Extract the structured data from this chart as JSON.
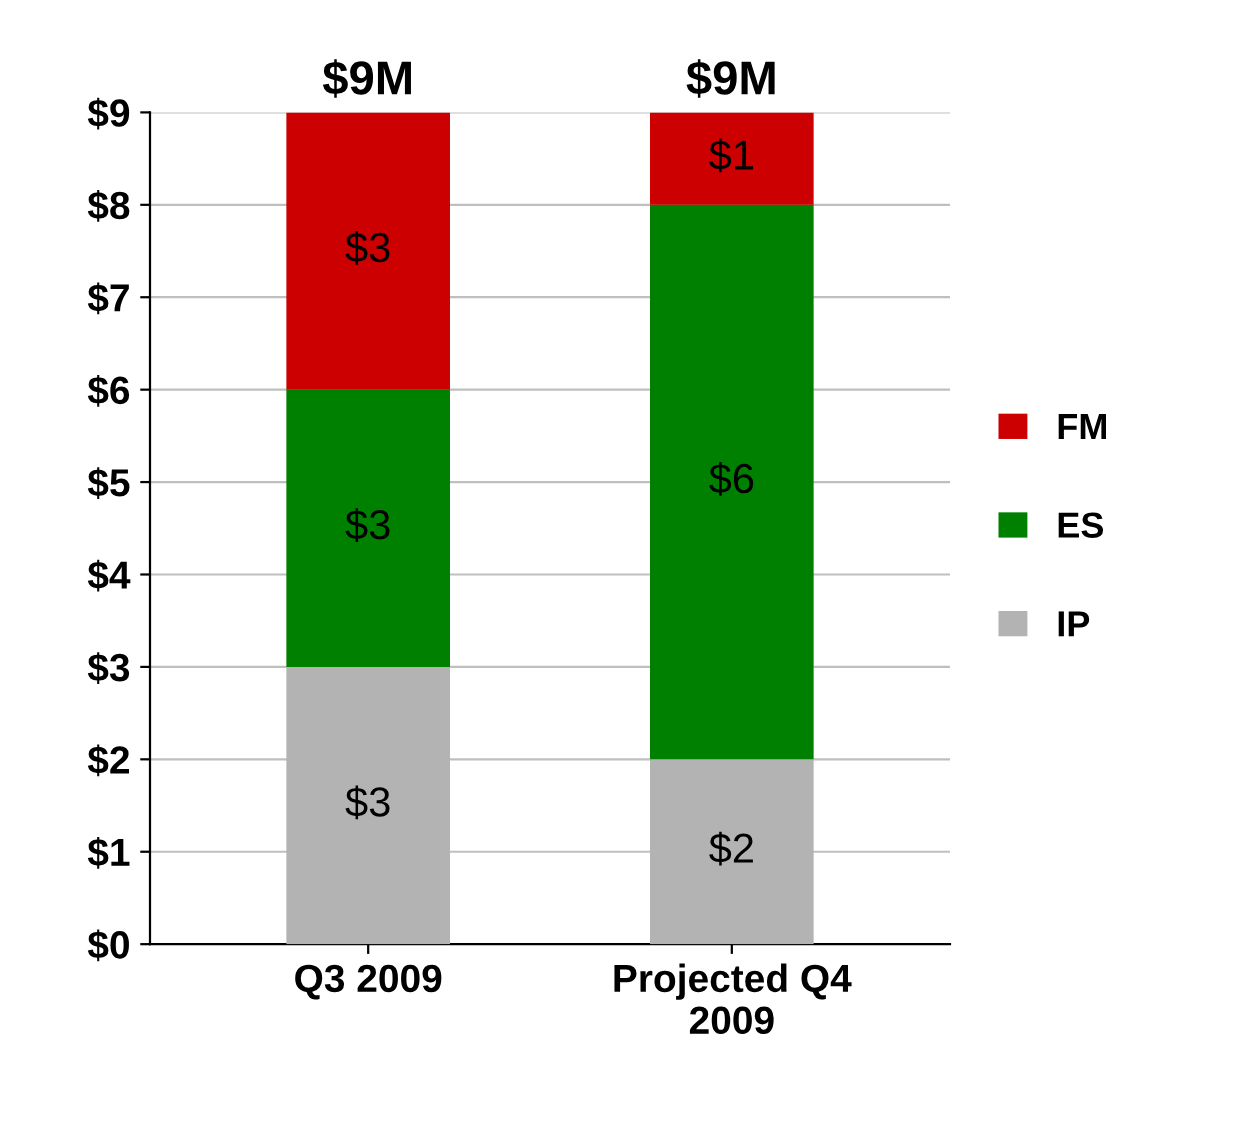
{
  "chart_data": {
    "type": "bar",
    "stacked": true,
    "categories": [
      "Q3 2009",
      "Projected Q4\n2009"
    ],
    "series": [
      {
        "name": "IP",
        "color": "#b3b3b3",
        "values": [
          3,
          2
        ],
        "value_labels": [
          "$3",
          "$2"
        ]
      },
      {
        "name": "ES",
        "color": "#008000",
        "values": [
          3,
          6
        ],
        "value_labels": [
          "$3",
          "$6"
        ]
      },
      {
        "name": "FM",
        "color": "#cc0000",
        "values": [
          3,
          1
        ],
        "value_labels": [
          "$3",
          "$1"
        ]
      }
    ],
    "totals": [
      "$9M",
      "$9M"
    ],
    "ylim": [
      0,
      9
    ],
    "yticks": [
      {
        "value": 0,
        "label": "$0"
      },
      {
        "value": 1,
        "label": "$1"
      },
      {
        "value": 2,
        "label": "$2"
      },
      {
        "value": 3,
        "label": "$3"
      },
      {
        "value": 4,
        "label": "$4"
      },
      {
        "value": 5,
        "label": "$5"
      },
      {
        "value": 6,
        "label": "$6"
      },
      {
        "value": 7,
        "label": "$7"
      },
      {
        "value": 8,
        "label": "$8"
      },
      {
        "value": 9,
        "label": "$9"
      }
    ],
    "grid": "y",
    "legend": "right"
  }
}
